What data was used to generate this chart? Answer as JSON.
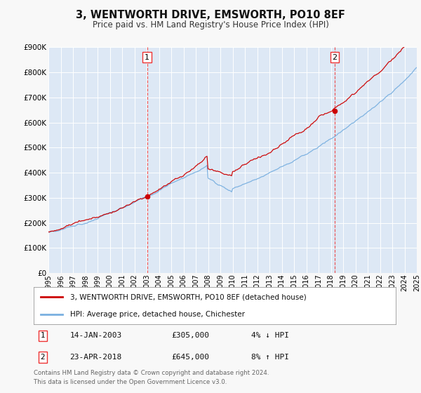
{
  "title": "3, WENTWORTH DRIVE, EMSWORTH, PO10 8EF",
  "subtitle": "Price paid vs. HM Land Registry's House Price Index (HPI)",
  "background_color": "#f8f8f8",
  "plot_bg_color": "#dde8f5",
  "x_start": 1995,
  "x_end": 2025,
  "y_min": 0,
  "y_max": 900000,
  "y_ticks": [
    0,
    100000,
    200000,
    300000,
    400000,
    500000,
    600000,
    700000,
    800000,
    900000
  ],
  "y_tick_labels": [
    "£0",
    "£100K",
    "£200K",
    "£300K",
    "£400K",
    "£500K",
    "£600K",
    "£700K",
    "£800K",
    "£900K"
  ],
  "transaction1": {
    "date": "14-JAN-2003",
    "year": 2003.04,
    "price": 305000,
    "label": "1",
    "pct": "4%",
    "direction": "↓",
    "vs": "HPI"
  },
  "transaction2": {
    "date": "23-APR-2018",
    "year": 2018.31,
    "price": 645000,
    "label": "2",
    "pct": "8%",
    "direction": "↑",
    "vs": "HPI"
  },
  "legend_line1": "3, WENTWORTH DRIVE, EMSWORTH, PO10 8EF (detached house)",
  "legend_line2": "HPI: Average price, detached house, Chichester",
  "footer1": "Contains HM Land Registry data © Crown copyright and database right 2024.",
  "footer2": "This data is licensed under the Open Government Licence v3.0.",
  "hpi_color": "#7ab0e0",
  "price_color": "#cc0000",
  "vline_color": "#ee3333",
  "grid_color": "#ffffff",
  "x_tick_years": [
    1995,
    1996,
    1997,
    1998,
    1999,
    2000,
    2001,
    2002,
    2003,
    2004,
    2005,
    2006,
    2007,
    2008,
    2009,
    2010,
    2011,
    2012,
    2013,
    2014,
    2015,
    2016,
    2017,
    2018,
    2019,
    2020,
    2021,
    2022,
    2023,
    2024,
    2025
  ]
}
